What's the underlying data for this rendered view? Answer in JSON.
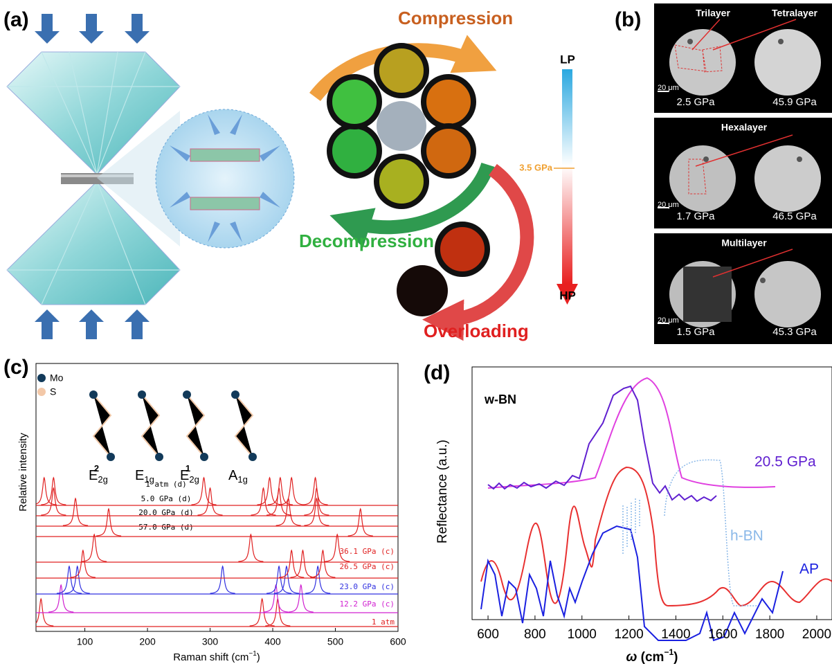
{
  "panel_a": {
    "label": "(a)",
    "compression": "Compression",
    "decompression": "Decompression",
    "overloading": "Overloading",
    "lp": "LP",
    "hp": "HP",
    "threshold": "3.5 GPa"
  },
  "panel_b": {
    "label": "(b)",
    "rows": [
      {
        "titles": [
          "Trilayer",
          "Tetralayer"
        ],
        "scale": "20 μm",
        "left": "2.5 GPa",
        "right": "45.9 GPa"
      },
      {
        "titles": [
          "Hexalayer"
        ],
        "scale": "20 μm",
        "left": "1.7 GPa",
        "right": "46.5 GPa"
      },
      {
        "titles": [
          "Multilayer"
        ],
        "scale": "20 μm",
        "left": "1.5 GPa",
        "right": "45.3 GPa"
      }
    ]
  },
  "panel_c": {
    "label": "(c)",
    "legend": [
      "Mo",
      "S"
    ],
    "modes": [
      {
        "base": "E",
        "sub": "2g",
        "sup": "2"
      },
      {
        "base": "E",
        "sub": "1g"
      },
      {
        "base": "E",
        "sub": "2g",
        "sup": "1"
      },
      {
        "base": "A",
        "sub": "1g"
      }
    ],
    "y_label": "Relative intensity",
    "x_label": {
      "text": "Raman shift (cm",
      "sup": "−1",
      "close": ")"
    },
    "xlim": [
      22,
      600
    ],
    "xticks": [
      100,
      200,
      300,
      400,
      500,
      600
    ],
    "traces": [
      {
        "name": "1 atm",
        "color": "#e02020",
        "peaks": [
          30,
          383,
          408
        ]
      },
      {
        "name": "12.2 GPa (c)",
        "color": "#d020d0",
        "peaks": [
          62,
          405,
          445
        ]
      },
      {
        "name": "23.0 GPa (c)",
        "color": "#3030e0",
        "peaks": [
          75,
          88,
          320,
          410,
          422,
          472
        ]
      },
      {
        "name": "26.5 GPa (c)",
        "color": "#e02020",
        "peaks": [
          97,
          430,
          448,
          480
        ]
      },
      {
        "name": "36.1 GPa (c)",
        "color": "#e02020",
        "peaks": [
          115,
          365,
          503
        ]
      },
      {
        "name": "57.0 GPa (d)",
        "color": "#e02020",
        "peaks": [
          138,
          540
        ]
      },
      {
        "name": "20.0 GPa (d)",
        "color": "#e02020",
        "peaks": [
          85,
          425,
          470
        ]
      },
      {
        "name": "5.0 GPa (d)",
        "color": "#e02020",
        "peaks": [
          50,
          300,
          385,
          410,
          470
        ]
      },
      {
        "name": "1 atm (d)",
        "color": "#e02020",
        "peaks": [
          35,
          50,
          290,
          395,
          412,
          430,
          468
        ]
      }
    ]
  },
  "panel_d": {
    "label": "(d)",
    "y_label": "Reflectance (a.u.)",
    "x_label": {
      "symbol": "ω",
      "text": " (cm",
      "sup": "−1",
      "close": ")"
    },
    "xlim": [
      532,
      2065
    ],
    "xticks": [
      600,
      800,
      1000,
      1200,
      1400,
      1600,
      1800,
      2000
    ],
    "labels": {
      "wbn": "w-BN",
      "pressure": "20.5 GPa",
      "hbn": "h-BN",
      "ap": "AP"
    }
  }
}
